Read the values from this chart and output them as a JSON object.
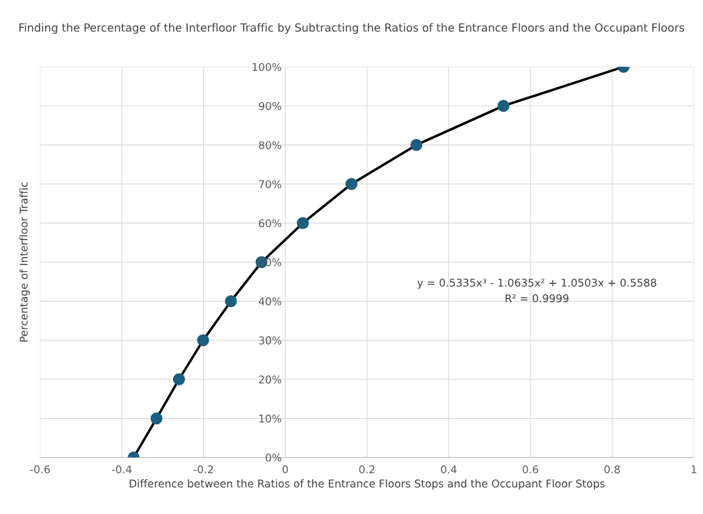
{
  "chart_data": {
    "type": "scatter",
    "title": "Finding the Percentage of the Interfloor Traffic by Subtracting the Ratios of the Entrance Floors and the Occupant Floors",
    "xlabel": "Difference between the Ratios of the Entrance Floors Stops and the Occupant Floor Stops",
    "ylabel": "Percentage of Interfloor Traffic",
    "series": [
      {
        "type": "line",
        "color": "#000000",
        "x": [
          -0.371,
          -0.315,
          -0.26,
          -0.201,
          -0.133,
          -0.058,
          0.043,
          0.162,
          0.321,
          0.534,
          0.828
        ],
        "values": [
          0,
          10,
          20,
          30,
          40,
          50,
          60,
          70,
          80,
          90,
          100
        ],
        "marker": "none",
        "line_style": "solid"
      },
      {
        "type": "scatter",
        "color": "#1b5e7e",
        "x": [
          -0.371,
          -0.315,
          -0.26,
          -0.201,
          -0.133,
          -0.058,
          0.043,
          0.162,
          0.321,
          0.534,
          0.828
        ],
        "values": [
          0,
          10,
          20,
          30,
          40,
          50,
          60,
          70,
          80,
          90,
          100
        ],
        "marker": "circle"
      }
    ],
    "xlim": [
      -0.6,
      1
    ],
    "xticks": [
      -0.6,
      -0.4,
      -0.2,
      0,
      0.2,
      0.4,
      0.6,
      0.8,
      1
    ],
    "ylim": [
      0,
      100
    ],
    "yticks": [
      {
        "value": 0,
        "label": "0%"
      },
      {
        "value": 10,
        "label": "10%"
      },
      {
        "value": 20,
        "label": "20%"
      },
      {
        "value": 30,
        "label": "30%"
      },
      {
        "value": 40,
        "label": "40%"
      },
      {
        "value": 50,
        "label": "50%"
      },
      {
        "value": 60,
        "label": "60%"
      },
      {
        "value": 70,
        "label": "70%"
      },
      {
        "value": 80,
        "label": "80%"
      },
      {
        "value": 90,
        "label": "90%"
      },
      {
        "value": 100,
        "label": "100%"
      }
    ],
    "grid": true,
    "annotations": [
      "y = 0.5335x³ - 1.0635x² + 1.0503x + 0.5588",
      "R² = 0.9999"
    ]
  }
}
